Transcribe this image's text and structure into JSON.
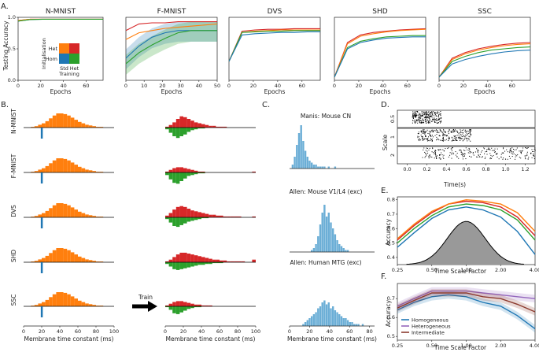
{
  "panel_labels": [
    "A.",
    "B.",
    "C.",
    "D.",
    "E.",
    "F."
  ],
  "chart_data": [
    {
      "id": "A",
      "type": "line",
      "ylabel": "Testing Accuracy",
      "xlabel": "Epochs",
      "subplots": [
        {
          "title": "N-MNIST",
          "xticks": [
            "0",
            "20",
            "40",
            "60"
          ],
          "yticks": [
            "0.0",
            "0.5",
            "1.0"
          ],
          "xmax": 75,
          "series": [
            {
              "color": "#d62728",
              "y": [
                0.95,
                0.97,
                0.97,
                0.97,
                0.97,
                0.97,
                0.97,
                0.97
              ]
            },
            {
              "color": "#1f77b4",
              "y": [
                0.94,
                0.965,
                0.97,
                0.97,
                0.97,
                0.97,
                0.97,
                0.97
              ]
            },
            {
              "color": "#ff7f0e",
              "y": [
                0.95,
                0.97,
                0.97,
                0.97,
                0.97,
                0.97,
                0.97,
                0.97
              ]
            },
            {
              "color": "#2ca02c",
              "y": [
                0.94,
                0.965,
                0.97,
                0.97,
                0.97,
                0.97,
                0.97,
                0.97
              ]
            }
          ]
        },
        {
          "title": "F-MNIST",
          "xticks": [
            "0",
            "10",
            "20",
            "30",
            "40",
            "50"
          ],
          "xmax": 50,
          "series": [
            {
              "color": "#d62728",
              "y": [
                0.8,
                0.86,
                0.87,
                0.87,
                0.88,
                0.88,
                0.88,
                0.88
              ]
            },
            {
              "color": "#ff7f0e",
              "y": [
                0.72,
                0.78,
                0.8,
                0.82,
                0.83,
                0.84,
                0.85,
                0.86
              ]
            },
            {
              "color": "#1f77b4",
              "y": [
                0.55,
                0.66,
                0.74,
                0.78,
                0.8,
                0.8,
                0.8,
                0.8
              ]
            },
            {
              "color": "#2ca02c",
              "y": [
                0.5,
                0.6,
                0.67,
                0.73,
                0.78,
                0.8,
                0.8,
                0.8
              ]
            }
          ]
        },
        {
          "title": "DVS",
          "xticks": [
            "0",
            "20",
            "40",
            "60"
          ],
          "xmax": 75,
          "series": [
            {
              "color": "#d62728",
              "y": [
                0.3,
                0.78,
                0.8,
                0.81,
                0.81,
                0.82,
                0.82,
                0.82
              ]
            },
            {
              "color": "#ff7f0e",
              "y": [
                0.3,
                0.76,
                0.78,
                0.79,
                0.8,
                0.8,
                0.8,
                0.8
              ]
            },
            {
              "color": "#2ca02c",
              "y": [
                0.3,
                0.76,
                0.77,
                0.78,
                0.78,
                0.79,
                0.79,
                0.79
              ]
            },
            {
              "color": "#1f77b4",
              "y": [
                0.3,
                0.72,
                0.74,
                0.75,
                0.76,
                0.76,
                0.77,
                0.77
              ]
            }
          ]
        },
        {
          "title": "SHD",
          "xticks": [
            "0",
            "20",
            "40",
            "60"
          ],
          "xmax": 75,
          "series": [
            {
              "color": "#d62728",
              "y": [
                0.05,
                0.6,
                0.72,
                0.76,
                0.78,
                0.8,
                0.81,
                0.82
              ]
            },
            {
              "color": "#ff7f0e",
              "y": [
                0.05,
                0.58,
                0.7,
                0.74,
                0.77,
                0.79,
                0.8,
                0.81
              ]
            },
            {
              "color": "#2ca02c",
              "y": [
                0.05,
                0.52,
                0.62,
                0.66,
                0.69,
                0.7,
                0.71,
                0.71
              ]
            },
            {
              "color": "#1f77b4",
              "y": [
                0.05,
                0.5,
                0.6,
                0.64,
                0.67,
                0.68,
                0.69,
                0.69
              ]
            }
          ]
        },
        {
          "title": "SSC",
          "xticks": [
            "0",
            "20",
            "40",
            "60"
          ],
          "xmax": 75,
          "series": [
            {
              "color": "#d62728",
              "y": [
                0.05,
                0.35,
                0.44,
                0.5,
                0.54,
                0.57,
                0.59,
                0.6
              ]
            },
            {
              "color": "#ff7f0e",
              "y": [
                0.05,
                0.33,
                0.42,
                0.48,
                0.52,
                0.55,
                0.57,
                0.58
              ]
            },
            {
              "color": "#2ca02c",
              "y": [
                0.05,
                0.3,
                0.38,
                0.44,
                0.48,
                0.5,
                0.52,
                0.53
              ]
            },
            {
              "color": "#1f77b4",
              "y": [
                0.05,
                0.26,
                0.33,
                0.38,
                0.42,
                0.45,
                0.47,
                0.48
              ]
            }
          ]
        }
      ],
      "inset": {
        "ylabel": "Initialisation",
        "xlabel": "Training",
        "rows": [
          "Het",
          "Hom"
        ],
        "cols": [
          "Std",
          "Het"
        ],
        "colors": [
          [
            "#ff7f0e",
            "#d62728"
          ],
          [
            "#1f77b4",
            "#2ca02c"
          ]
        ]
      }
    },
    {
      "id": "B",
      "type": "bar",
      "xlabel": "Membrane time constant (ms)",
      "xticks": [
        "0",
        "20",
        "40",
        "60",
        "80",
        "100"
      ],
      "rows": [
        "N-MNIST",
        "F-MNIST",
        "DVS",
        "SHD",
        "SSC"
      ],
      "arrow_label": "Train",
      "init_hist": [
        0,
        0,
        1,
        2,
        4,
        6,
        9,
        13,
        17,
        20,
        20,
        19,
        17,
        14,
        11,
        8,
        6,
        4,
        3,
        2,
        1,
        1,
        0,
        0,
        0
      ],
      "trained_pos": [
        [
          1,
          3,
          6,
          10,
          13,
          12,
          10,
          8,
          6,
          5,
          4,
          3,
          2,
          2,
          1,
          1,
          1,
          0,
          0,
          0,
          0,
          0,
          0,
          0,
          0
        ],
        [
          1,
          3,
          5,
          6,
          6,
          5,
          4,
          3,
          2,
          1,
          1,
          0,
          0,
          0,
          0,
          0,
          0,
          0,
          0,
          0,
          0,
          0,
          0,
          0,
          1
        ],
        [
          2,
          5,
          9,
          12,
          13,
          12,
          10,
          8,
          7,
          6,
          5,
          4,
          3,
          3,
          2,
          2,
          1,
          1,
          1,
          1,
          1,
          0,
          0,
          0,
          1
        ],
        [
          1,
          3,
          6,
          9,
          11,
          11,
          10,
          9,
          8,
          7,
          6,
          5,
          4,
          3,
          3,
          2,
          2,
          1,
          1,
          1,
          1,
          1,
          0,
          0,
          3
        ],
        [
          1,
          3,
          5,
          6,
          6,
          5,
          4,
          3,
          2,
          2,
          1,
          1,
          1,
          0,
          0,
          0,
          0,
          0,
          0,
          0,
          0,
          0,
          0,
          0,
          0
        ]
      ],
      "trained_neg": [
        [
          2,
          6,
          10,
          12,
          10,
          8,
          5,
          3,
          2,
          1,
          1,
          0,
          0,
          0,
          0,
          0,
          0,
          0,
          0,
          0,
          0,
          0,
          0,
          0,
          0
        ],
        [
          3,
          8,
          12,
          13,
          10,
          7,
          4,
          3,
          2,
          1,
          1,
          0,
          0,
          0,
          0,
          0,
          0,
          0,
          0,
          0,
          0,
          0,
          0,
          0,
          0
        ],
        [
          2,
          6,
          10,
          11,
          9,
          7,
          5,
          4,
          3,
          2,
          1,
          1,
          0,
          0,
          0,
          0,
          0,
          0,
          0,
          0,
          0,
          0,
          0,
          0,
          0
        ],
        [
          2,
          5,
          8,
          9,
          8,
          7,
          6,
          5,
          4,
          3,
          3,
          2,
          2,
          1,
          1,
          1,
          0,
          0,
          0,
          0,
          0,
          0,
          0,
          0,
          0
        ],
        [
          1,
          4,
          8,
          9,
          7,
          5,
          3,
          2,
          1,
          1,
          0,
          0,
          0,
          0,
          0,
          0,
          0,
          0,
          0,
          0,
          0,
          0,
          0,
          0,
          0
        ]
      ]
    },
    {
      "id": "C",
      "type": "bar",
      "xlabel": "Membrane time constant (ms)",
      "xticks": [
        "0",
        "20",
        "40",
        "60",
        "80"
      ],
      "titles": [
        "Manis: Mouse CN",
        "Allen: Mouse V1/L4 (exc)",
        "Allen: Human MTG (exc)"
      ],
      "hists": [
        [
          0,
          2,
          6,
          12,
          18,
          22,
          14,
          9,
          6,
          4,
          3,
          2,
          2,
          1,
          1,
          1,
          1,
          0,
          1,
          0,
          0,
          1,
          0,
          0,
          0,
          0,
          0,
          0,
          0,
          0,
          0,
          0,
          0,
          0,
          0,
          0,
          0,
          0,
          0,
          0
        ],
        [
          0,
          0,
          0,
          0,
          0,
          0,
          0,
          0,
          0,
          0,
          1,
          2,
          4,
          8,
          14,
          20,
          24,
          18,
          20,
          15,
          12,
          9,
          6,
          4,
          3,
          2,
          1,
          1,
          0,
          0,
          0,
          0,
          0,
          0,
          0,
          0,
          0,
          0,
          0,
          0
        ],
        [
          0,
          0,
          0,
          0,
          0,
          0,
          1,
          2,
          3,
          4,
          5,
          6,
          7,
          9,
          10,
          12,
          13,
          11,
          12,
          9,
          10,
          8,
          7,
          6,
          5,
          4,
          4,
          3,
          2,
          2,
          1,
          1,
          1,
          0,
          1,
          0,
          0,
          0,
          0,
          0
        ]
      ]
    },
    {
      "id": "D",
      "type": "scatter",
      "ylabel": "Scale",
      "xlabel": "Time(s)",
      "yticks": [
        "0.5",
        "1",
        "2"
      ],
      "xticks": [
        "0.0",
        "0.2",
        "0.4",
        "0.6",
        "0.8",
        "1.0",
        "1.2"
      ]
    },
    {
      "id": "E",
      "type": "line",
      "ylabel": "Accuracy",
      "xlabel": "Time Scale Factor",
      "xticks": [
        "0.25",
        "0.50",
        "1.00",
        "2.00",
        "4.00"
      ],
      "yticks": [
        "0.4",
        "0.5",
        "0.6",
        "0.7",
        "0.8"
      ],
      "ylim": [
        0.35,
        0.82
      ],
      "x": [
        0.25,
        0.35,
        0.5,
        0.7,
        1.0,
        1.4,
        2.0,
        2.8,
        4.0
      ],
      "series": [
        {
          "color": "#d62728",
          "y": [
            0.52,
            0.62,
            0.71,
            0.77,
            0.79,
            0.78,
            0.75,
            0.68,
            0.55
          ]
        },
        {
          "color": "#ff7f0e",
          "y": [
            0.53,
            0.63,
            0.72,
            0.77,
            0.8,
            0.79,
            0.77,
            0.71,
            0.58
          ]
        },
        {
          "color": "#2ca02c",
          "y": [
            0.5,
            0.6,
            0.69,
            0.75,
            0.77,
            0.76,
            0.73,
            0.66,
            0.52
          ]
        },
        {
          "color": "#1f77b4",
          "y": [
            0.47,
            0.57,
            0.67,
            0.73,
            0.75,
            0.73,
            0.68,
            0.58,
            0.42
          ]
        }
      ],
      "hist_peak": 0.65
    },
    {
      "id": "F",
      "type": "line",
      "ylabel": "Accuracy",
      "xlabel": "Time Scale Factor",
      "xticks": [
        "0.25",
        "0.50",
        "1.00",
        "2.00",
        "4.00"
      ],
      "yticks": [
        "0.5",
        "0.6",
        "0.7"
      ],
      "ylim": [
        0.48,
        0.78
      ],
      "x": [
        0.25,
        0.35,
        0.5,
        0.7,
        1.0,
        1.4,
        2.0,
        2.8,
        4.0
      ],
      "series": [
        {
          "name": "Homogeneous",
          "color": "#1f77b4",
          "y": [
            0.64,
            0.68,
            0.71,
            0.72,
            0.71,
            0.68,
            0.66,
            0.61,
            0.54
          ]
        },
        {
          "name": "Heterogeneous",
          "color": "#9467bd",
          "y": [
            0.66,
            0.7,
            0.74,
            0.74,
            0.74,
            0.73,
            0.72,
            0.71,
            0.7
          ]
        },
        {
          "name": "Intermediate",
          "color": "#8c3b2f",
          "y": [
            0.65,
            0.69,
            0.73,
            0.73,
            0.73,
            0.71,
            0.7,
            0.67,
            0.63
          ]
        }
      ]
    }
  ]
}
